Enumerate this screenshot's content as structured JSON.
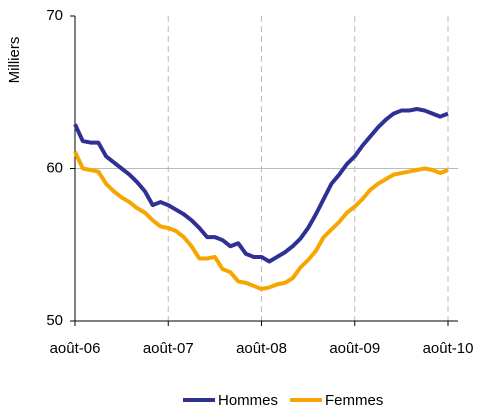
{
  "chart_data": {
    "type": "line",
    "y_label": "Milliers",
    "categories": [
      "août-06",
      null,
      null,
      null,
      null,
      null,
      null,
      null,
      null,
      null,
      null,
      null,
      "août-07",
      null,
      null,
      null,
      null,
      null,
      null,
      null,
      null,
      null,
      null,
      null,
      "août-08",
      null,
      null,
      null,
      null,
      null,
      null,
      null,
      null,
      null,
      null,
      null,
      "août-09",
      null,
      null,
      null,
      null,
      null,
      null,
      null,
      null,
      null,
      null,
      null,
      "août-10"
    ],
    "series": [
      {
        "name": "Hommes",
        "color": "#2e3192",
        "values": [
          62.9,
          61.8,
          61.7,
          61.7,
          60.8,
          60.4,
          60.0,
          59.6,
          59.1,
          58.5,
          57.6,
          57.8,
          57.6,
          57.3,
          57.0,
          56.6,
          56.1,
          55.5,
          55.5,
          55.3,
          54.9,
          55.1,
          54.4,
          54.2,
          54.2,
          53.9,
          54.2,
          54.5,
          54.9,
          55.4,
          56.1,
          57.0,
          58.0,
          59.0,
          59.6,
          60.3,
          60.8,
          61.5,
          62.1,
          62.7,
          63.2,
          63.6,
          63.8,
          63.8,
          63.9,
          63.8,
          63.6,
          63.4,
          63.6
        ]
      },
      {
        "name": "Femmes",
        "color": "#f7a600",
        "values": [
          61.1,
          60.0,
          59.9,
          59.8,
          59.0,
          58.5,
          58.1,
          57.8,
          57.4,
          57.1,
          56.6,
          56.2,
          56.1,
          55.9,
          55.5,
          54.9,
          54.1,
          54.1,
          54.2,
          53.4,
          53.2,
          52.6,
          52.5,
          52.3,
          52.1,
          52.2,
          52.4,
          52.5,
          52.8,
          53.5,
          54.0,
          54.6,
          55.5,
          56.0,
          56.5,
          57.1,
          57.5,
          58.0,
          58.6,
          59.0,
          59.3,
          59.6,
          59.7,
          59.8,
          59.9,
          60.0,
          59.9,
          59.7,
          59.9
        ]
      }
    ],
    "ylim": [
      50,
      70
    ],
    "yticks": [
      50,
      60,
      70
    ],
    "grid": true,
    "legend": "bottom"
  }
}
